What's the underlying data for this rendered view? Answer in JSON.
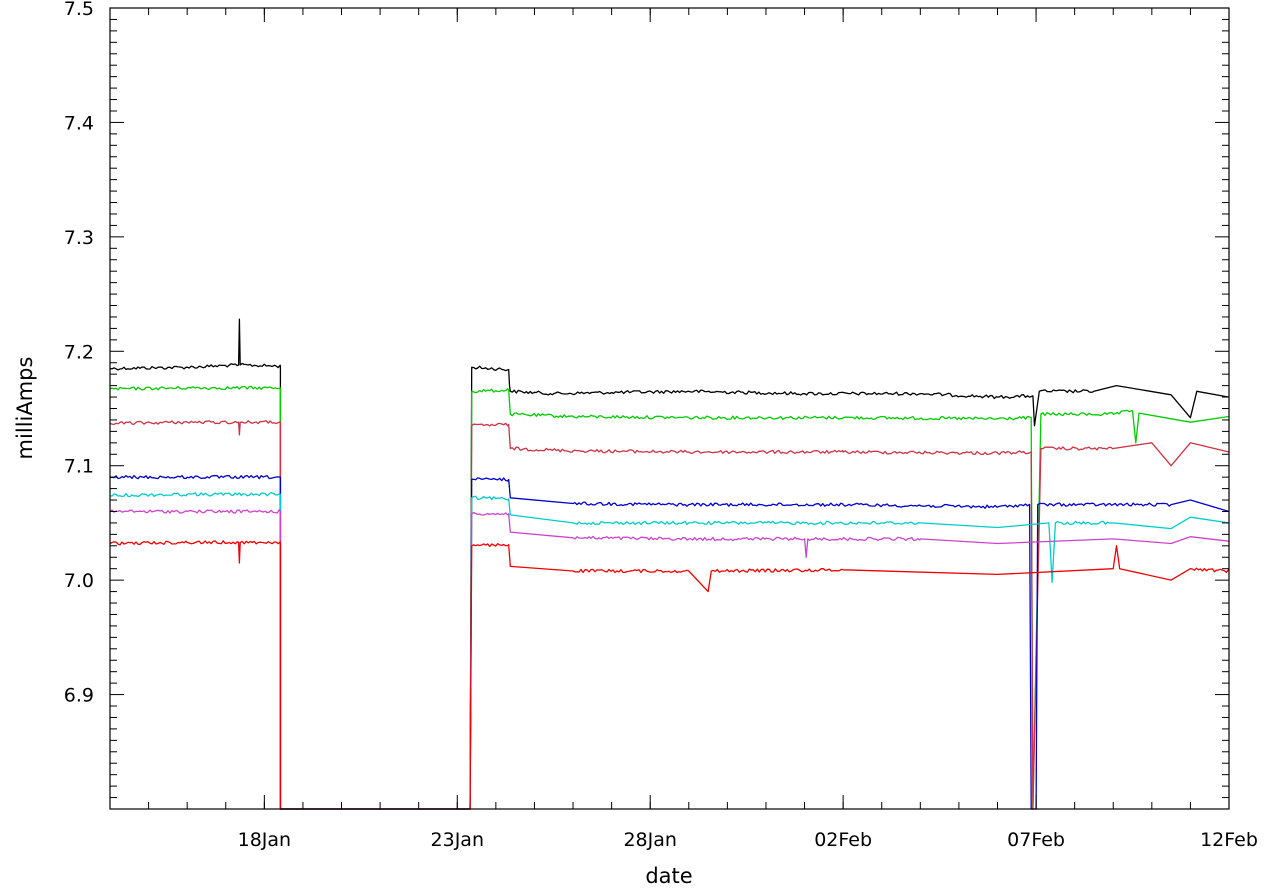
{
  "chart_data": {
    "type": "line",
    "title": "",
    "xlabel": "date",
    "ylabel": "milliAmps",
    "xlim": [
      "2022-01-14T00:00",
      "2022-02-12T00:00"
    ],
    "ylim": [
      6.8,
      7.5
    ],
    "x_ticks": [
      {
        "date": "2022-01-18",
        "label": "18Jan"
      },
      {
        "date": "2022-01-23",
        "label": "23Jan"
      },
      {
        "date": "2022-01-28",
        "label": "28Jan"
      },
      {
        "date": "2022-02-02",
        "label": "02Feb"
      },
      {
        "date": "2022-02-07",
        "label": "07Feb"
      },
      {
        "date": "2022-02-12",
        "label": "12Feb"
      }
    ],
    "y_ticks": [
      {
        "value": 6.9,
        "label": "6.9"
      },
      {
        "value": 7.0,
        "label": "7.0"
      },
      {
        "value": 7.1,
        "label": "7.1"
      },
      {
        "value": 7.2,
        "label": "7.2"
      },
      {
        "value": 7.3,
        "label": "7.3"
      },
      {
        "value": 7.4,
        "label": "7.4"
      },
      {
        "value": 7.5,
        "label": "7.5"
      }
    ],
    "grid": false,
    "legend": "none",
    "series": [
      {
        "color": "#000000",
        "points": [
          [
            "2022-01-14T00:00",
            7.185
          ],
          [
            "2022-01-16T00:00",
            7.186
          ],
          [
            "2022-01-17T08:00",
            7.188
          ],
          [
            "2022-01-17T08:30",
            7.228
          ],
          [
            "2022-01-17T09:00",
            7.188
          ],
          [
            "2022-01-18T10:00",
            7.187
          ],
          [
            "2022-01-18T10:01",
            6.8
          ],
          [
            "2022-01-23T08:00",
            6.8
          ],
          [
            "2022-01-23T09:00",
            7.186
          ],
          [
            "2022-01-24T08:00",
            7.184
          ],
          [
            "2022-01-24T08:30",
            7.17
          ],
          [
            "2022-01-24T09:00",
            7.165
          ],
          [
            "2022-01-25T12:00",
            7.163
          ],
          [
            "2022-01-27T00:00",
            7.164
          ],
          [
            "2022-01-29T00:00",
            7.165
          ],
          [
            "2022-02-01T00:00",
            7.163
          ],
          [
            "2022-02-04T00:00",
            7.163
          ],
          [
            "2022-02-06T00:00",
            7.16
          ],
          [
            "2022-02-06T22:00",
            7.161
          ],
          [
            "2022-02-06T23:00",
            7.135
          ],
          [
            "2022-02-07T02:00",
            7.165
          ],
          [
            "2022-02-08T12:00",
            7.165
          ],
          [
            "2022-02-09T02:00",
            7.17
          ],
          [
            "2022-02-10T12:00",
            7.162
          ],
          [
            "2022-02-11T00:00",
            7.142
          ],
          [
            "2022-02-11T04:00",
            7.165
          ],
          [
            "2022-02-12T00:00",
            7.16
          ]
        ]
      },
      {
        "color": "#00cc00",
        "points": [
          [
            "2022-01-14T00:00",
            7.167
          ],
          [
            "2022-01-16T00:00",
            7.168
          ],
          [
            "2022-01-18T10:00",
            7.168
          ],
          [
            "2022-01-18T10:01",
            6.8
          ],
          [
            "2022-01-23T08:00",
            6.8
          ],
          [
            "2022-01-23T09:00",
            7.165
          ],
          [
            "2022-01-24T08:00",
            7.166
          ],
          [
            "2022-01-24T09:00",
            7.145
          ],
          [
            "2022-01-26T00:00",
            7.143
          ],
          [
            "2022-01-29T00:00",
            7.142
          ],
          [
            "2022-02-02T00:00",
            7.142
          ],
          [
            "2022-02-06T00:00",
            7.141
          ],
          [
            "2022-02-06T21:00",
            7.142
          ],
          [
            "2022-02-06T22:00",
            6.8
          ],
          [
            "2022-02-07T03:00",
            7.145
          ],
          [
            "2022-02-09T00:00",
            7.145
          ],
          [
            "2022-02-09T12:00",
            7.148
          ],
          [
            "2022-02-09T14:00",
            7.12
          ],
          [
            "2022-02-09T16:00",
            7.146
          ],
          [
            "2022-02-11T00:00",
            7.138
          ],
          [
            "2022-02-12T00:00",
            7.143
          ]
        ]
      },
      {
        "color": "#cc3344",
        "points": [
          [
            "2022-01-14T00:00",
            7.137
          ],
          [
            "2022-01-16T00:00",
            7.138
          ],
          [
            "2022-01-17T08:00",
            7.138
          ],
          [
            "2022-01-17T08:30",
            7.127
          ],
          [
            "2022-01-17T09:00",
            7.138
          ],
          [
            "2022-01-18T10:00",
            7.138
          ],
          [
            "2022-01-18T10:01",
            6.8
          ],
          [
            "2022-01-23T08:00",
            6.8
          ],
          [
            "2022-01-23T09:00",
            7.135
          ],
          [
            "2022-01-24T08:00",
            7.136
          ],
          [
            "2022-01-24T09:00",
            7.115
          ],
          [
            "2022-01-26T00:00",
            7.113
          ],
          [
            "2022-01-29T00:00",
            7.112
          ],
          [
            "2022-02-02T00:00",
            7.112
          ],
          [
            "2022-02-06T00:00",
            7.111
          ],
          [
            "2022-02-06T21:00",
            7.112
          ],
          [
            "2022-02-06T22:00",
            6.8
          ],
          [
            "2022-02-07T03:00",
            7.115
          ],
          [
            "2022-02-09T00:00",
            7.115
          ],
          [
            "2022-02-10T00:00",
            7.12
          ],
          [
            "2022-02-10T12:00",
            7.1
          ],
          [
            "2022-02-11T00:00",
            7.12
          ],
          [
            "2022-02-12T00:00",
            7.112
          ]
        ]
      },
      {
        "color": "#0000cc",
        "points": [
          [
            "2022-01-14T00:00",
            7.09
          ],
          [
            "2022-01-16T00:00",
            7.09
          ],
          [
            "2022-01-18T10:00",
            7.09
          ],
          [
            "2022-01-18T10:01",
            6.8
          ],
          [
            "2022-01-23T08:00",
            6.8
          ],
          [
            "2022-01-23T09:00",
            7.088
          ],
          [
            "2022-01-24T08:00",
            7.088
          ],
          [
            "2022-01-24T09:00",
            7.072
          ],
          [
            "2022-01-26T00:00",
            7.067
          ],
          [
            "2022-01-29T00:00",
            7.066
          ],
          [
            "2022-02-02T00:00",
            7.066
          ],
          [
            "2022-02-06T00:00",
            7.064
          ],
          [
            "2022-02-06T20:00",
            7.066
          ],
          [
            "2022-02-06T21:00",
            6.8
          ],
          [
            "2022-02-07T00:00",
            6.8
          ],
          [
            "2022-02-07T01:00",
            7.066
          ],
          [
            "2022-02-09T00:00",
            7.066
          ],
          [
            "2022-02-10T12:00",
            7.066
          ],
          [
            "2022-02-11T00:00",
            7.07
          ],
          [
            "2022-02-12T00:00",
            7.06
          ]
        ]
      },
      {
        "color": "#00cccc",
        "points": [
          [
            "2022-01-14T00:00",
            7.074
          ],
          [
            "2022-01-16T00:00",
            7.075
          ],
          [
            "2022-01-18T10:00",
            7.075
          ],
          [
            "2022-01-18T10:01",
            6.8
          ],
          [
            "2022-01-23T08:00",
            6.8
          ],
          [
            "2022-01-23T09:00",
            7.072
          ],
          [
            "2022-01-24T08:00",
            7.071
          ],
          [
            "2022-01-24T09:00",
            7.057
          ],
          [
            "2022-01-26T00:00",
            7.05
          ],
          [
            "2022-01-29T00:00",
            7.05
          ],
          [
            "2022-02-01T00:00",
            7.05
          ],
          [
            "2022-02-04T00:00",
            7.05
          ],
          [
            "2022-02-06T00:00",
            7.046
          ],
          [
            "2022-02-07T08:00",
            7.05
          ],
          [
            "2022-02-07T10:00",
            6.998
          ],
          [
            "2022-02-07T12:00",
            7.05
          ],
          [
            "2022-02-09T00:00",
            7.05
          ],
          [
            "2022-02-10T12:00",
            7.045
          ],
          [
            "2022-02-11T00:00",
            7.055
          ],
          [
            "2022-02-12T00:00",
            7.05
          ]
        ]
      },
      {
        "color": "#cc44cc",
        "points": [
          [
            "2022-01-14T00:00",
            7.06
          ],
          [
            "2022-01-16T00:00",
            7.06
          ],
          [
            "2022-01-18T10:00",
            7.06
          ],
          [
            "2022-01-18T10:01",
            6.8
          ],
          [
            "2022-01-23T08:00",
            6.8
          ],
          [
            "2022-01-23T09:00",
            7.058
          ],
          [
            "2022-01-24T08:00",
            7.058
          ],
          [
            "2022-01-24T09:00",
            7.042
          ],
          [
            "2022-01-26T00:00",
            7.037
          ],
          [
            "2022-01-29T00:00",
            7.036
          ],
          [
            "2022-02-01T00:00",
            7.036
          ],
          [
            "2022-02-01T01:00",
            7.02
          ],
          [
            "2022-02-01T02:00",
            7.036
          ],
          [
            "2022-02-04T00:00",
            7.036
          ],
          [
            "2022-02-06T00:00",
            7.032
          ],
          [
            "2022-02-09T00:00",
            7.036
          ],
          [
            "2022-02-10T12:00",
            7.032
          ],
          [
            "2022-02-11T00:00",
            7.038
          ],
          [
            "2022-02-12T00:00",
            7.034
          ]
        ]
      },
      {
        "color": "#ee0000",
        "points": [
          [
            "2022-01-14T00:00",
            7.032
          ],
          [
            "2022-01-16T00:00",
            7.033
          ],
          [
            "2022-01-17T08:00",
            7.033
          ],
          [
            "2022-01-17T08:30",
            7.015
          ],
          [
            "2022-01-17T09:00",
            7.033
          ],
          [
            "2022-01-18T10:00",
            7.033
          ],
          [
            "2022-01-18T10:01",
            6.8
          ],
          [
            "2022-01-23T08:00",
            6.8
          ],
          [
            "2022-01-23T09:00",
            7.03
          ],
          [
            "2022-01-24T08:00",
            7.031
          ],
          [
            "2022-01-24T09:00",
            7.012
          ],
          [
            "2022-01-26T00:00",
            7.008
          ],
          [
            "2022-01-29T00:00",
            7.008
          ],
          [
            "2022-01-29T12:00",
            6.99
          ],
          [
            "2022-01-29T14:00",
            7.008
          ],
          [
            "2022-02-02T00:00",
            7.009
          ],
          [
            "2022-02-06T00:00",
            7.005
          ],
          [
            "2022-02-09T00:00",
            7.01
          ],
          [
            "2022-02-09T02:00",
            7.03
          ],
          [
            "2022-02-09T04:00",
            7.01
          ],
          [
            "2022-02-10T12:00",
            7.0
          ],
          [
            "2022-02-11T00:00",
            7.01
          ],
          [
            "2022-02-12T00:00",
            7.008
          ]
        ]
      }
    ]
  }
}
